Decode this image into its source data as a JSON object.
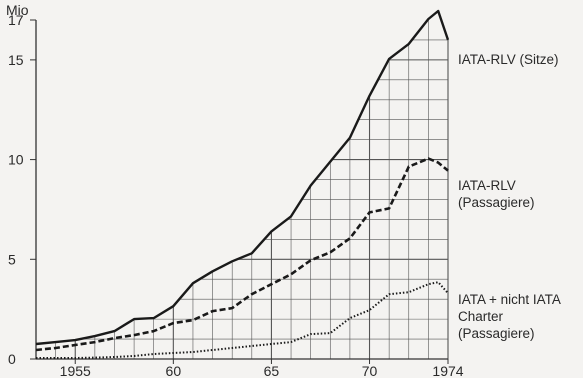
{
  "chart_data": {
    "type": "line",
    "ylabel": "Mio",
    "ylim": [
      0,
      17
    ],
    "xlim": [
      1953,
      1974
    ],
    "grid": "vertical lines each year; horizontal lines every 1 Mio from 1 to 16; grid spans under the upper curve",
    "x_ticks": [
      1955,
      1960,
      1965,
      1970,
      1974
    ],
    "x_tick_labels": [
      "1955",
      "60",
      "65",
      "70",
      "1974"
    ],
    "y_ticks": [
      0,
      5,
      10,
      15,
      17
    ],
    "y_tick_labels": [
      "0",
      "5",
      "10",
      "15",
      "17"
    ],
    "x": [
      1953,
      1954,
      1955,
      1956,
      1957,
      1958,
      1959,
      1960,
      1961,
      1962,
      1963,
      1964,
      1965,
      1966,
      1967,
      1968,
      1969,
      1970,
      1971,
      1972,
      1973,
      1973.5,
      1974
    ],
    "series": [
      {
        "name": "IATA-RLV (Sitze)",
        "style": "solid",
        "values": [
          0.75,
          0.85,
          0.95,
          1.15,
          1.4,
          2.0,
          2.05,
          2.65,
          3.8,
          4.4,
          4.9,
          5.3,
          6.4,
          7.15,
          8.7,
          9.9,
          11.1,
          13.2,
          15.05,
          15.8,
          17.05,
          17.45,
          16.0
        ]
      },
      {
        "name": "IATA-RLV\n(Passagiere)",
        "style": "dashed",
        "values": [
          0.45,
          0.55,
          0.7,
          0.85,
          1.05,
          1.2,
          1.4,
          1.8,
          1.95,
          2.4,
          2.55,
          3.25,
          3.75,
          4.25,
          4.95,
          5.35,
          6.05,
          7.35,
          7.55,
          9.65,
          10.05,
          9.85,
          9.45
        ]
      },
      {
        "name": "IATA + nicht IATA\nCharter\n(Passagiere)",
        "style": "dotted",
        "values": [
          0.05,
          0.05,
          0.05,
          0.07,
          0.1,
          0.15,
          0.25,
          0.3,
          0.35,
          0.45,
          0.55,
          0.65,
          0.75,
          0.85,
          1.25,
          1.3,
          2.05,
          2.45,
          3.25,
          3.35,
          3.75,
          3.85,
          3.3
        ]
      }
    ]
  }
}
